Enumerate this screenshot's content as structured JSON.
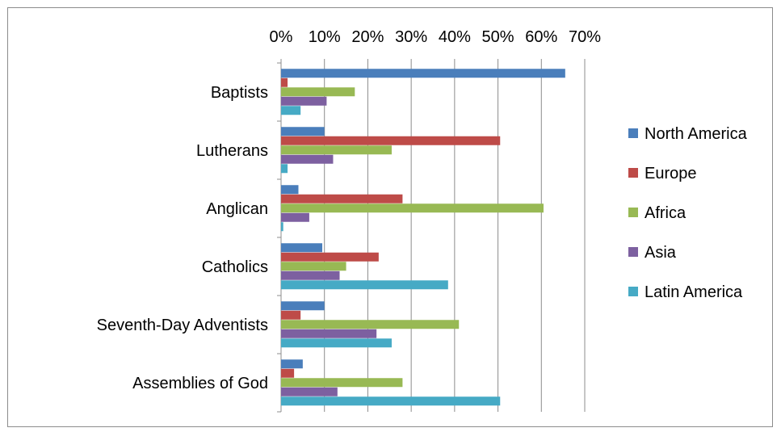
{
  "chart_data": {
    "type": "bar",
    "orientation": "horizontal",
    "title": "",
    "xlabel": "",
    "ylabel": "",
    "xlim": [
      0,
      0.7
    ],
    "x_ticks": [
      "0%",
      "10%",
      "20%",
      "30%",
      "40%",
      "50%",
      "60%",
      "70%"
    ],
    "x_axis_position": "top",
    "gridlines": "vertical major",
    "legend_position": "right",
    "categories": [
      "Baptists",
      "Lutherans",
      "Anglican",
      "Catholics",
      "Seventh-Day Adventists",
      "Assemblies of God"
    ],
    "series": [
      {
        "name": "North America",
        "color": "#4a7ebb",
        "values": [
          0.655,
          0.1,
          0.04,
          0.095,
          0.1,
          0.05
        ]
      },
      {
        "name": "Europe",
        "color": "#be4b48",
        "values": [
          0.015,
          0.505,
          0.28,
          0.225,
          0.045,
          0.03
        ]
      },
      {
        "name": "Africa",
        "color": "#98b954",
        "values": [
          0.17,
          0.255,
          0.605,
          0.15,
          0.41,
          0.28
        ]
      },
      {
        "name": "Asia",
        "color": "#7d60a0",
        "values": [
          0.105,
          0.12,
          0.065,
          0.135,
          0.22,
          0.13
        ]
      },
      {
        "name": "Latin America",
        "color": "#46aac5",
        "values": [
          0.045,
          0.015,
          0.005,
          0.385,
          0.255,
          0.505
        ]
      }
    ]
  }
}
